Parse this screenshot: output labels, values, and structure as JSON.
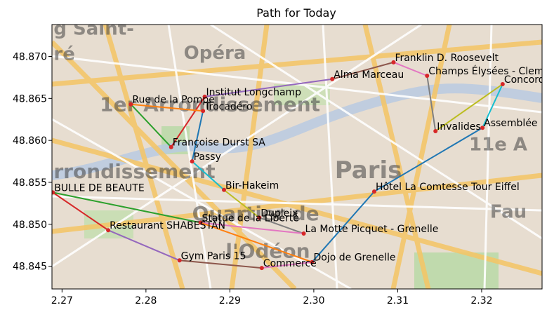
{
  "chart_data": {
    "type": "line",
    "title": "Path for Today",
    "xlabel": "",
    "ylabel": "",
    "xlim": [
      2.2688,
      2.3272
    ],
    "ylim": [
      48.8423,
      48.8738
    ],
    "x_ticks": [
      2.27,
      2.28,
      2.29,
      2.3,
      2.31,
      2.32
    ],
    "x_tick_labels": [
      "2.27",
      "2.28",
      "2.29",
      "2.30",
      "2.31",
      "2.32"
    ],
    "y_ticks": [
      48.845,
      48.85,
      48.855,
      48.86,
      48.865,
      48.87
    ],
    "y_tick_labels": [
      "48.845",
      "48.850",
      "48.855",
      "48.860",
      "48.865",
      "48.870"
    ],
    "grid": false,
    "basemap_labels": [
      {
        "text": "g Saint-",
        "x": 2.269,
        "y": 48.8726,
        "size": 26
      },
      {
        "text": "ré",
        "x": 2.269,
        "y": 48.8696,
        "size": 26
      },
      {
        "text": "Opéra",
        "x": 2.2845,
        "y": 48.8697,
        "size": 26
      },
      {
        "text": "1er Arrondissement",
        "x": 2.2745,
        "y": 48.8635,
        "size": 28
      },
      {
        "text": "rrondissement",
        "x": 2.269,
        "y": 48.8555,
        "size": 28
      },
      {
        "text": "Paris",
        "x": 2.3025,
        "y": 48.8555,
        "size": 34
      },
      {
        "text": "11e A",
        "x": 2.3185,
        "y": 48.8588,
        "size": 26
      },
      {
        "text": "Fau",
        "x": 2.321,
        "y": 48.8508,
        "size": 26
      },
      {
        "text": "Quartier de",
        "x": 2.2855,
        "y": 48.8505,
        "size": 28
      },
      {
        "text": "l'Odéon",
        "x": 2.2895,
        "y": 48.846,
        "size": 28
      }
    ],
    "points": [
      {
        "name": "BULLE DE BEAUTE",
        "x": 2.2689,
        "y": 48.8538
      },
      {
        "name": "Restaurant SHABESTAN",
        "x": 2.2755,
        "y": 48.8493
      },
      {
        "name": "Gym Paris 15",
        "x": 2.284,
        "y": 48.8457
      },
      {
        "name": "Commerce",
        "x": 2.2938,
        "y": 48.8448
      },
      {
        "name": "Dojo de Grenelle",
        "x": 2.2998,
        "y": 48.8455
      },
      {
        "name": "Hôtel La Comtesse Tour Eiffel",
        "x": 2.3072,
        "y": 48.8539
      },
      {
        "name": "Assemblée",
        "x": 2.3201,
        "y": 48.8615
      },
      {
        "name": "Invalides",
        "x": 2.3145,
        "y": 48.8611
      },
      {
        "name": "Champs Élysées - Clemenceau",
        "x": 2.3135,
        "y": 48.8677
      },
      {
        "name": "Franklin D. Roosevelt",
        "x": 2.3095,
        "y": 48.8693
      },
      {
        "name": "Alma Marceau",
        "x": 2.3022,
        "y": 48.8673
      },
      {
        "name": "Institut Longchamp",
        "x": 2.287,
        "y": 48.8652
      },
      {
        "name": "Françoise Durst SA",
        "x": 2.283,
        "y": 48.8592
      },
      {
        "name": "Rue de la Pompe",
        "x": 2.2782,
        "y": 48.8643
      },
      {
        "name": "Trocadéro",
        "x": 2.2868,
        "y": 48.8635
      },
      {
        "name": "Passy",
        "x": 2.2855,
        "y": 48.8575
      },
      {
        "name": "Bir-Hakeim",
        "x": 2.2893,
        "y": 48.8541
      },
      {
        "name": "Statue de la Liberté",
        "x": 2.2865,
        "y": 48.8502
      },
      {
        "name": "Dupleix",
        "x": 2.2935,
        "y": 48.8508
      },
      {
        "name": "La Motte Picquet - Grenelle",
        "x": 2.2988,
        "y": 48.8489
      },
      {
        "name": "Concorde",
        "x": 2.3225,
        "y": 48.8667
      }
    ],
    "segments": [
      {
        "from": "BULLE DE BEAUTE",
        "to": "Restaurant SHABESTAN",
        "color": "#d62728"
      },
      {
        "from": "Restaurant SHABESTAN",
        "to": "Gym Paris 15",
        "color": "#9467bd"
      },
      {
        "from": "Gym Paris 15",
        "to": "Commerce",
        "color": "#8c564b"
      },
      {
        "from": "Commerce",
        "to": "Dojo de Grenelle",
        "color": "#e377c2"
      },
      {
        "from": "Dojo de Grenelle",
        "to": "Hôtel La Comtesse Tour Eiffel",
        "color": "#1f77b4"
      },
      {
        "from": "Hôtel La Comtesse Tour Eiffel",
        "to": "Assemblée",
        "color": "#1f77b4"
      },
      {
        "from": "Assemblée",
        "to": "Concorde",
        "color": "#17becf"
      },
      {
        "from": "Concorde",
        "to": "Invalides",
        "color": "#bcbd22"
      },
      {
        "from": "Invalides",
        "to": "Champs Élysées - Clemenceau",
        "color": "#7f7f7f"
      },
      {
        "from": "Champs Élysées - Clemenceau",
        "to": "Franklin D. Roosevelt",
        "color": "#e377c2"
      },
      {
        "from": "Franklin D. Roosevelt",
        "to": "Alma Marceau",
        "color": "#8c564b"
      },
      {
        "from": "Alma Marceau",
        "to": "Institut Longchamp",
        "color": "#9467bd"
      },
      {
        "from": "Institut Longchamp",
        "to": "Françoise Durst SA",
        "color": "#d62728"
      },
      {
        "from": "Françoise Durst SA",
        "to": "Rue de la Pompe",
        "color": "#2ca02c"
      },
      {
        "from": "Rue de la Pompe",
        "to": "Trocadéro",
        "color": "#ff7f0e"
      },
      {
        "from": "Trocadéro",
        "to": "Passy",
        "color": "#1f77b4"
      },
      {
        "from": "Passy",
        "to": "Bir-Hakeim",
        "color": "#17becf"
      },
      {
        "from": "Bir-Hakeim",
        "to": "Dupleix",
        "color": "#bcbd22"
      },
      {
        "from": "Dupleix",
        "to": "La Motte Picquet - Grenelle",
        "color": "#7f7f7f"
      },
      {
        "from": "La Motte Picquet - Grenelle",
        "to": "Statue de la Liberté",
        "color": "#e377c2"
      },
      {
        "from": "Statue de la Liberté",
        "to": "BULLE DE BEAUTE",
        "color": "#2ca02c"
      },
      {
        "from": "Statue de la Liberté",
        "to": "Dojo de Grenelle",
        "color": "#ff7f0e"
      }
    ],
    "marker_color": "#d62728"
  }
}
